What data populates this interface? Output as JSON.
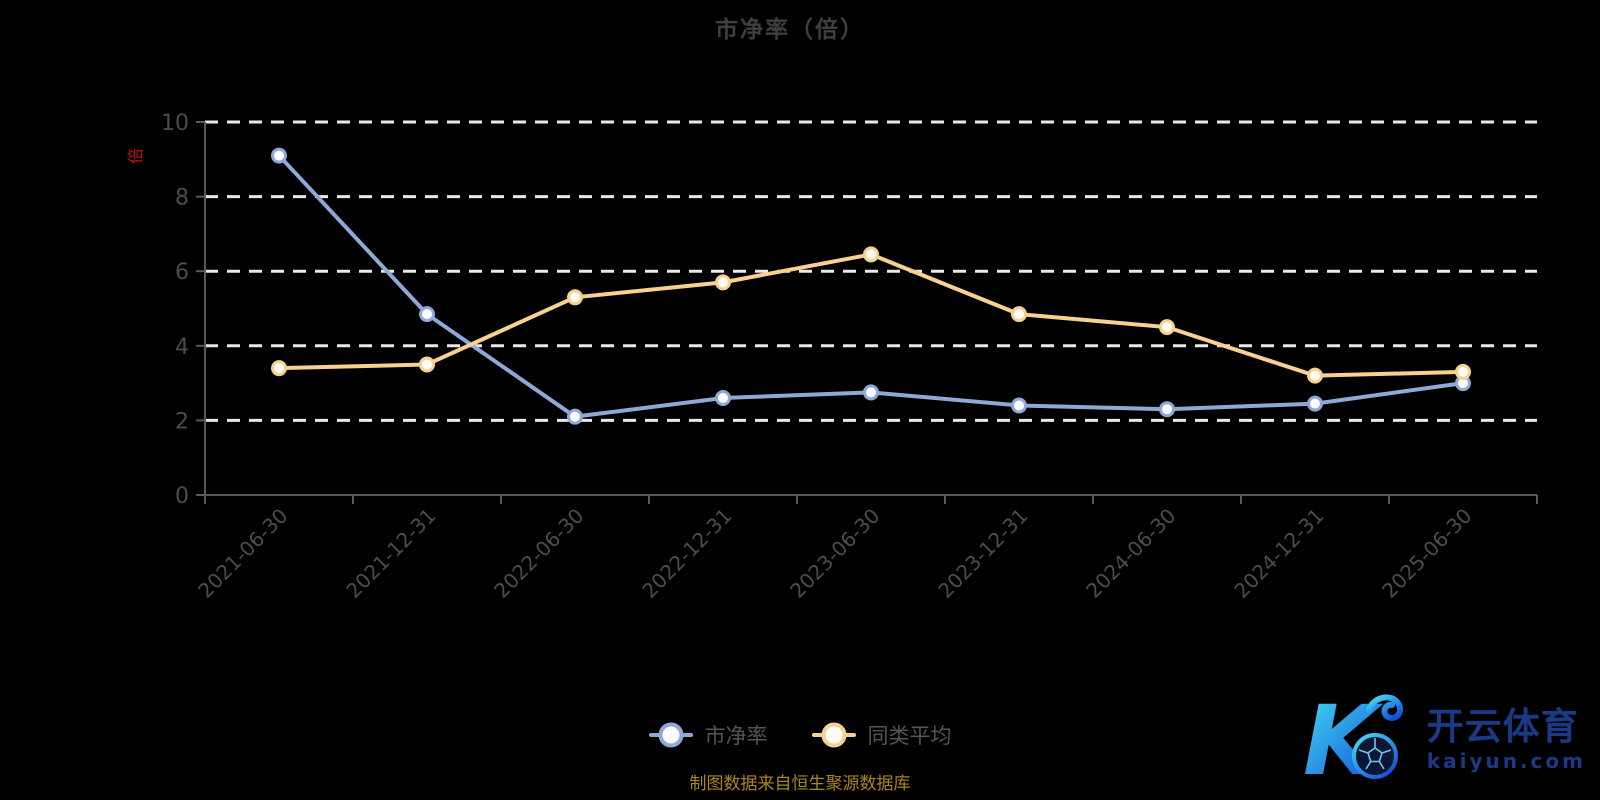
{
  "title": "市净率（倍）",
  "y_axis_unit_label": "倍",
  "footer": "制图数据来自恒生聚源数据库",
  "colors": {
    "background": "#000000",
    "series_pb": "#8fa9d6",
    "series_avg": "#f7d18f",
    "gridline": "#e9e9e9",
    "axis": "#5a5a5a",
    "axis_label": "#4c4c4c",
    "title_text": "#3f3f3f",
    "footer_text": "#ab861e",
    "y_unit_red": "#c41212",
    "watermark_navy": "#1a3a86",
    "watermark_cyan": "#43e2f4",
    "watermark_blue": "#1550d8"
  },
  "legend": [
    {
      "label": "市净率",
      "color": "#8fa9d6"
    },
    {
      "label": "同类平均",
      "color": "#f7d18f"
    }
  ],
  "watermark": {
    "letter": "K",
    "brand": "开云体育",
    "domain": "kaiyun.com",
    "logo_icon": "soccer-ball"
  },
  "chart_data": {
    "type": "line",
    "title": "市净率（倍）",
    "categories": [
      "2021-06-30",
      "2021-12-31",
      "2022-06-30",
      "2022-12-31",
      "2023-06-30",
      "2023-12-31",
      "2024-06-30",
      "2024-12-31",
      "2025-06-30"
    ],
    "series": [
      {
        "name": "市净率",
        "color": "#8fa9d6",
        "marker_fill": "#fbfdff",
        "values": [
          9.1,
          4.85,
          2.1,
          2.6,
          2.75,
          2.4,
          2.3,
          2.45,
          3.0
        ]
      },
      {
        "name": "同类平均",
        "color": "#f7d18f",
        "marker_fill": "#fffdf4",
        "values": [
          3.4,
          3.5,
          5.3,
          5.7,
          6.45,
          4.85,
          4.5,
          3.2,
          3.3
        ]
      }
    ],
    "xlabel": "",
    "ylabel": "倍",
    "ylim": [
      0,
      10
    ],
    "y_ticks": [
      0,
      2,
      4,
      6,
      8,
      10
    ],
    "grid": "horizontal-dashed",
    "x_label_rotate": 45,
    "legend_position": "bottom"
  }
}
